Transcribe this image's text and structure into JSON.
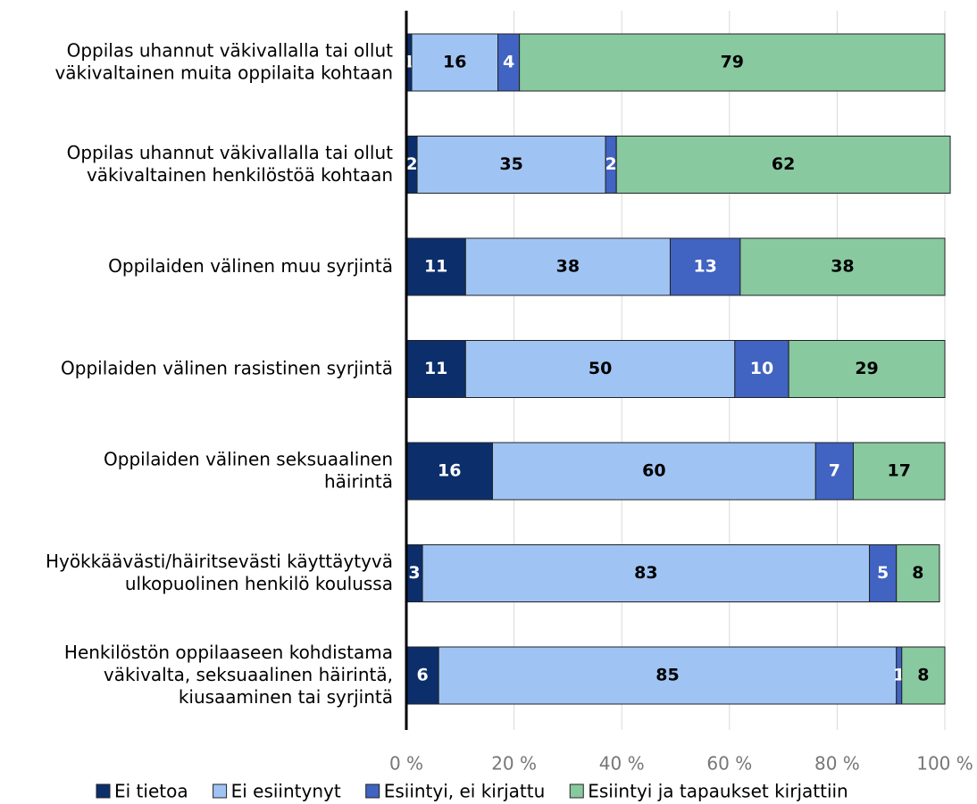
{
  "chart_data": {
    "type": "stacked_barh",
    "categories": [
      "Oppilas uhannut väkivallalla tai ollut\nväkivaltainen muita oppilaita kohtaan",
      "Oppilas uhannut väkivallalla tai ollut\nväkivaltainen henkilöstöä kohtaan",
      "Oppilaiden välinen muu syrjintä",
      "Oppilaiden välinen rasistinen syrjintä",
      "Oppilaiden välinen seksuaalinen\nhäirintä",
      "Hyökkäävästi/häiritsevästi käyttäytyvä\nulkopuolinen henkilö koulussa",
      "Henkilöstön oppilaaseen kohdistama\nväkivalta, seksuaalinen häirintä,\nkiusaaminen tai syrjintä"
    ],
    "series": [
      {
        "name": "Ei tietoa",
        "color": "#0c2f6c",
        "label_color": "#ffffff",
        "values": [
          1,
          2,
          11,
          11,
          16,
          3,
          6
        ]
      },
      {
        "name": "Ei esiintynyt",
        "color": "#9fc4f4",
        "label_color": "#000000",
        "values": [
          16,
          35,
          38,
          50,
          60,
          83,
          85
        ]
      },
      {
        "name": "Esiintyi, ei kirjattu",
        "color": "#4163c2",
        "label_color": "#ffffff",
        "values": [
          4,
          2,
          13,
          10,
          7,
          5,
          1
        ]
      },
      {
        "name": "Esiintyi ja tapaukset kirjattiin",
        "color": "#88c9a0",
        "label_color": "#000000",
        "values": [
          79,
          62,
          38,
          29,
          17,
          8,
          8
        ]
      }
    ],
    "xlim": [
      0,
      100
    ],
    "xticks": [
      {
        "value": 0,
        "label": "0 %"
      },
      {
        "value": 20,
        "label": "20 %"
      },
      {
        "value": 40,
        "label": "40 %"
      },
      {
        "value": 60,
        "label": "60 %"
      },
      {
        "value": 80,
        "label": "80 %"
      },
      {
        "value": 100,
        "label": "100 %"
      }
    ],
    "grid": true,
    "legend": "bottom"
  }
}
